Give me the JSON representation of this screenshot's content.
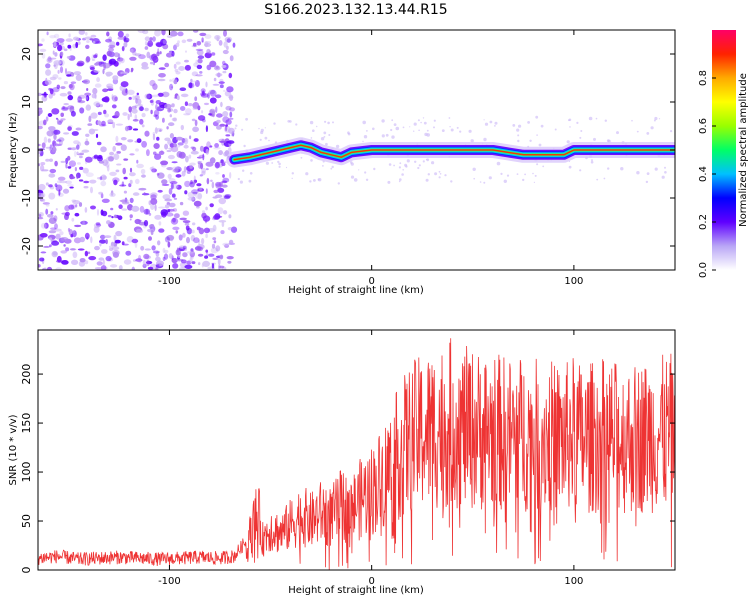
{
  "title": "S166.2023.132.13.44.R15",
  "colors": {
    "snr_line": "#ee3333",
    "spectrogram_signal": "#7700ff",
    "colorbar_stops": [
      "#ffffff",
      "#b9a6f6",
      "#5f00ff",
      "#0000ff",
      "#00c0ff",
      "#00ff66",
      "#99ff00",
      "#ffff00",
      "#ffaa00",
      "#ff2200",
      "#ff0066"
    ]
  },
  "chart_data": [
    {
      "type": "heatmap",
      "title": "S166.2023.132.13.44.R15",
      "xlabel": "Height of straight line (km)",
      "ylabel": "Frequency (Hz)",
      "xlim": [
        -165,
        150
      ],
      "ylim": [
        -25,
        25
      ],
      "x_ticks": [
        -100,
        0,
        100
      ],
      "x_tick_labels": [
        "-100",
        "0",
        "100"
      ],
      "y_ticks": [
        -20,
        -10,
        0,
        10,
        20
      ],
      "y_tick_labels": [
        "-20",
        "-10",
        "0",
        "10",
        "20"
      ],
      "noise_region_x": [
        -165,
        -68
      ],
      "signal_frequency_trace": {
        "x": [
          -68,
          -60,
          -50,
          -40,
          -35,
          -30,
          -25,
          -20,
          -15,
          -10,
          0,
          20,
          40,
          60,
          75,
          85,
          95,
          100,
          110,
          120,
          130,
          140,
          150
        ],
        "y": [
          -2,
          -1.5,
          -0.5,
          0.5,
          1,
          0.5,
          -0.5,
          -1,
          -1.5,
          -0.5,
          0,
          0,
          0,
          0,
          -1,
          -1,
          -1,
          0,
          0,
          0,
          0,
          0,
          0
        ]
      },
      "colorbar": {
        "label": "Normalized spectral amplitude",
        "range": [
          0,
          1
        ],
        "ticks": [
          0.0,
          0.2,
          0.4,
          0.6,
          0.8
        ],
        "tick_labels": [
          "0.0",
          "0.2",
          "0.4",
          "0.6",
          "0.8"
        ]
      }
    },
    {
      "type": "line",
      "xlabel": "Height of straight line (km)",
      "ylabel": "SNR (10 * v/v)",
      "xlim": [
        -165,
        150
      ],
      "ylim": [
        0,
        245
      ],
      "x_ticks": [
        -100,
        0,
        100
      ],
      "x_tick_labels": [
        "-100",
        "0",
        "100"
      ],
      "y_ticks": [
        0,
        50,
        100,
        150,
        200
      ],
      "y_tick_labels": [
        "0",
        "50",
        "100",
        "150",
        "200"
      ],
      "series": [
        {
          "x": [
            -165,
            -155,
            -145,
            -135,
            -125,
            -115,
            -105,
            -95,
            -85,
            -75,
            -68,
            -62,
            -58,
            -56,
            -54,
            -50,
            -45,
            -40,
            -35,
            -30,
            -25,
            -20,
            -15,
            -10,
            -5,
            0,
            5,
            10,
            15,
            20,
            25,
            30,
            35,
            40,
            45,
            50,
            55,
            60,
            65,
            70,
            75,
            80,
            85,
            90,
            95,
            100,
            105,
            110,
            115,
            120,
            125,
            130,
            135,
            140,
            145,
            150
          ],
          "y": [
            12,
            14,
            11,
            12,
            13,
            12,
            11,
            12,
            13,
            12,
            14,
            30,
            65,
            75,
            40,
            55,
            48,
            60,
            72,
            65,
            75,
            70,
            85,
            80,
            95,
            105,
            120,
            140,
            160,
            175,
            180,
            185,
            190,
            195,
            188,
            185,
            183,
            182,
            180,
            178,
            180,
            176,
            178,
            175,
            172,
            180,
            170,
            176,
            178,
            175,
            172,
            174,
            176,
            178,
            180,
            182
          ]
        }
      ]
    }
  ]
}
